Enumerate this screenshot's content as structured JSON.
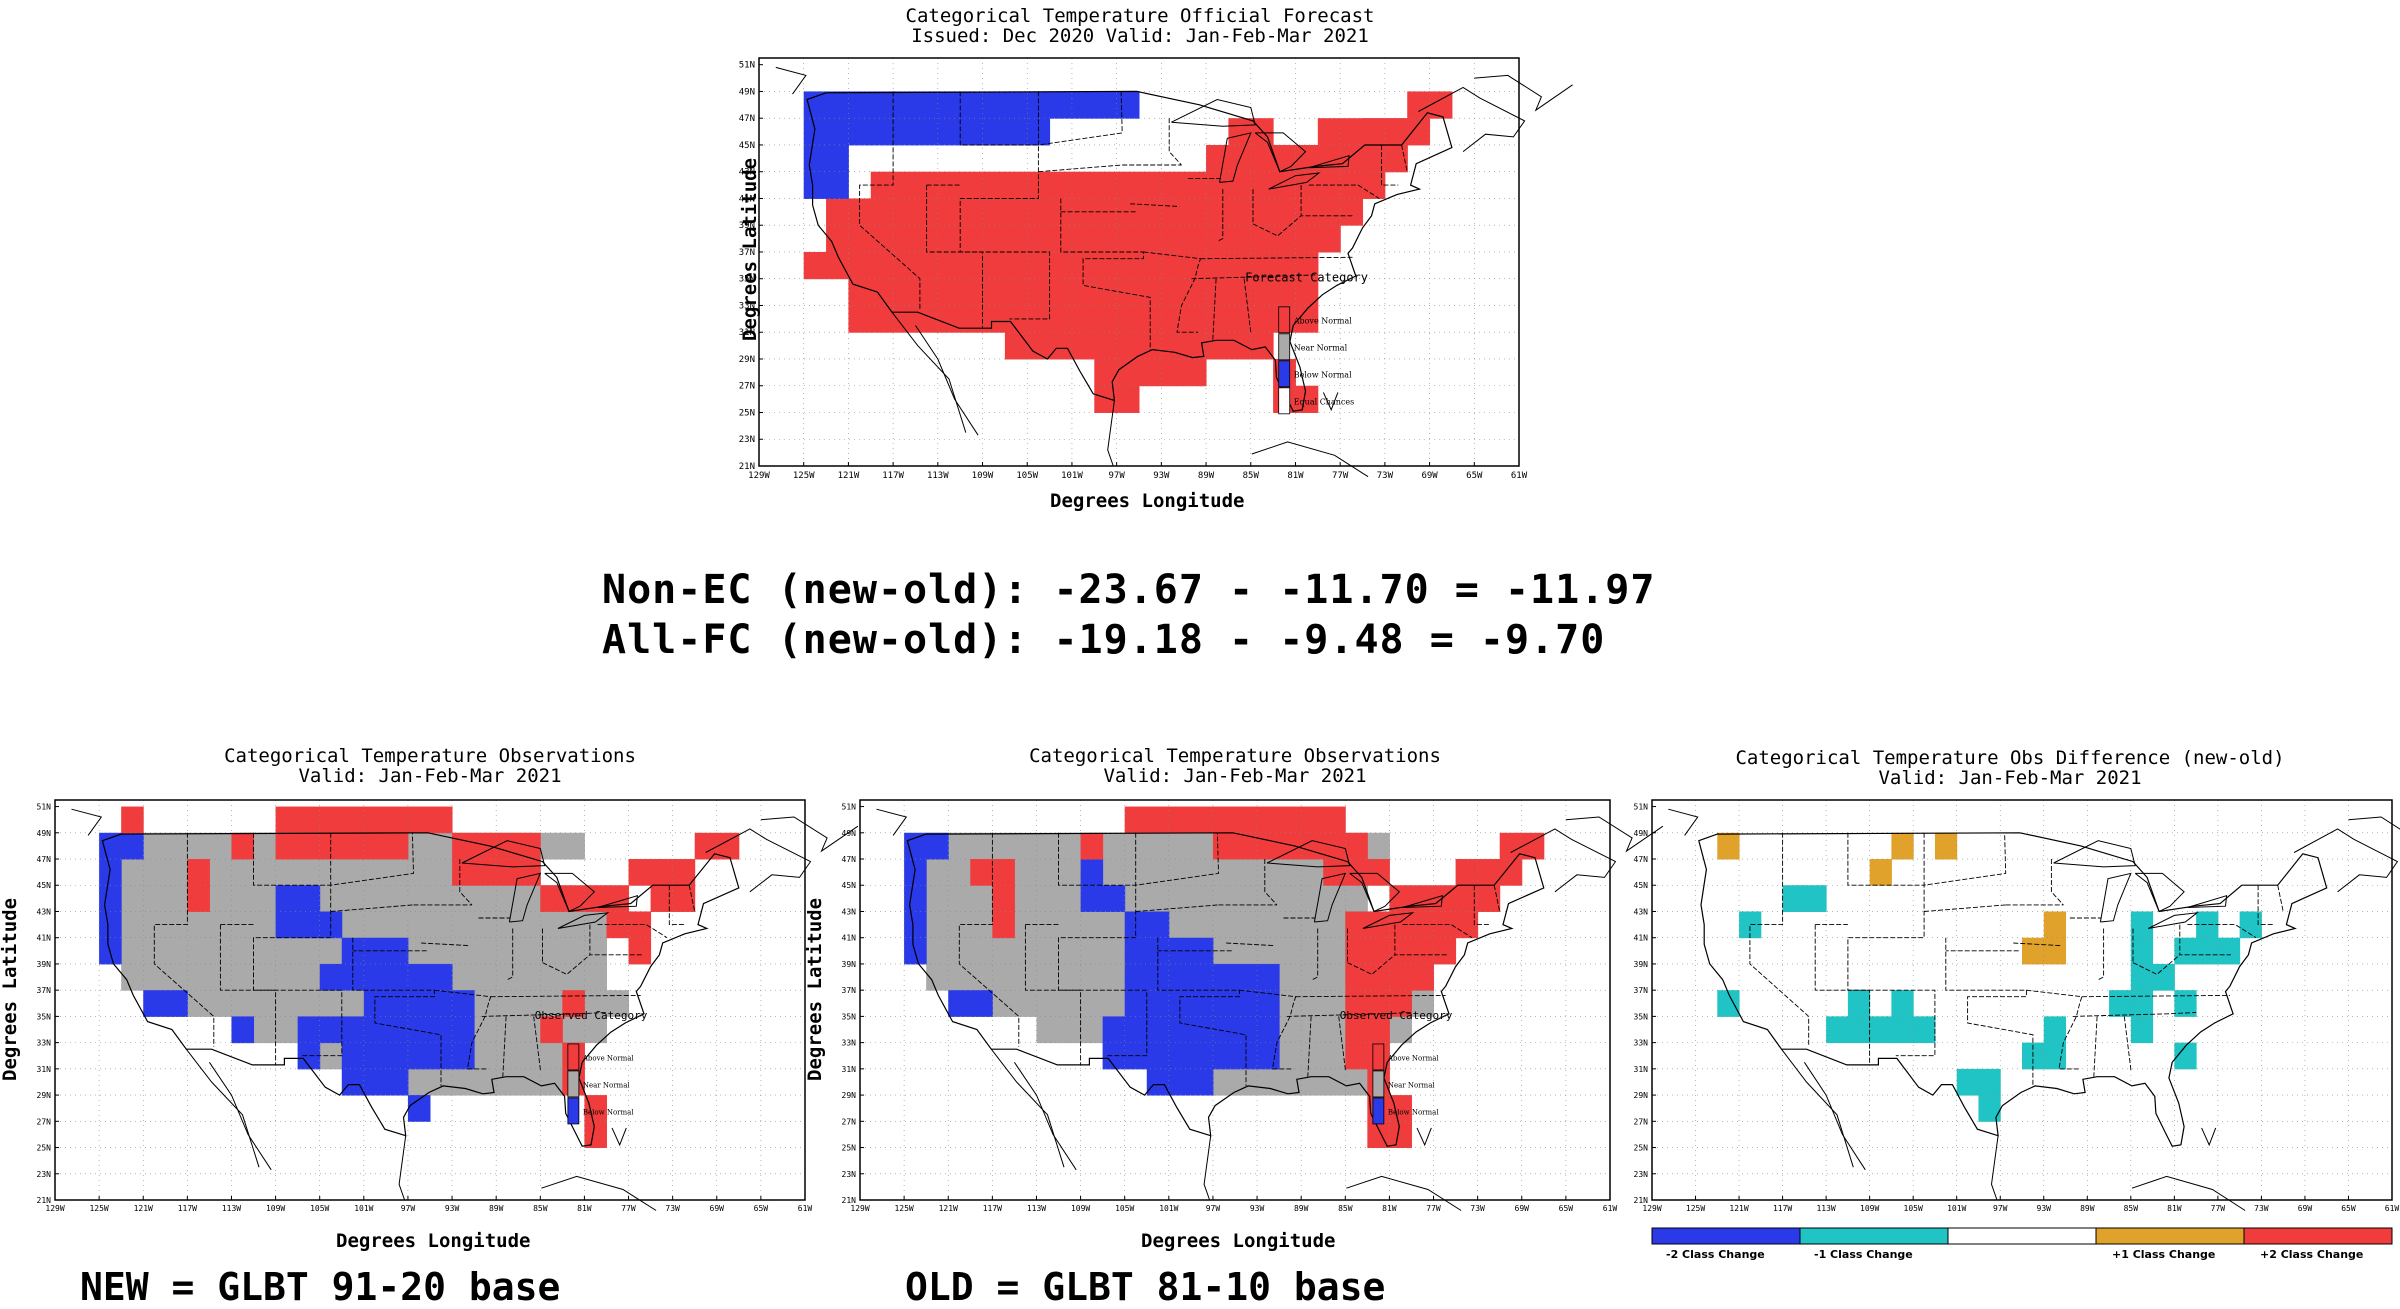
{
  "colors": {
    "above": "#f03c3c",
    "near": "#aaaaaa",
    "below": "#2a3ae8",
    "ec": "#ffffff",
    "minus2": "#2a3ae8",
    "minus1": "#20c4c4",
    "plus1": "#e0a22a",
    "plus2": "#f03c3c"
  },
  "forecast_panel": {
    "title_line1": "Categorical Temperature Official Forecast",
    "title_line2": "Issued: Dec 2020 Valid: Jan-Feb-Mar 2021",
    "xlabel": "Degrees Longitude",
    "ylabel": "Degrees Latitude",
    "legend_title": "Forecast Category",
    "legend": [
      "Above Normal",
      "Near Normal",
      "Below Normal",
      "Equal Chances"
    ]
  },
  "scores": {
    "line1": "Non-EC (new-old): -23.67 - -11.70 = -11.97",
    "line2": "All-FC (new-old): -19.18 - -9.48 = -9.70"
  },
  "new_panel": {
    "title_line1": "Categorical Temperature Observations",
    "title_line2": "Valid: Jan-Feb-Mar 2021",
    "xlabel": "Degrees Longitude",
    "ylabel": "Degrees Latitude",
    "legend_title": "Observed Category",
    "legend": [
      "Above Normal",
      "Near Normal",
      "Below Normal"
    ],
    "caption": "NEW = GLBT 91-20 base"
  },
  "old_panel": {
    "title_line1": "Categorical Temperature Observations",
    "title_line2": "Valid: Jan-Feb-Mar 2021",
    "xlabel": "Degrees Longitude",
    "ylabel": "Degrees Latitude",
    "legend_title": "Observed Category",
    "legend": [
      "Above Normal",
      "Near Normal",
      "Below Normal"
    ],
    "caption": "OLD = GLBT 81-10 base"
  },
  "diff_panel": {
    "title_line1": "Categorical Temperature Obs Difference (new-old)",
    "title_line2": "Valid: Jan-Feb-Mar 2021",
    "colorbar_labels": [
      "-2 Class Change",
      "-1 Class Change",
      "+1 Class Change",
      "+2 Class Change"
    ]
  },
  "axes": {
    "lat_ticks": [
      "51N",
      "49N",
      "47N",
      "45N",
      "43N",
      "41N",
      "39N",
      "37N",
      "35N",
      "33N",
      "31N",
      "29N",
      "27N",
      "25N",
      "23N",
      "21N"
    ],
    "lon_ticks": [
      "129W",
      "125W",
      "121W",
      "117W",
      "113W",
      "109W",
      "105W",
      "101W",
      "97W",
      "93W",
      "89W",
      "85W",
      "81W",
      "77W",
      "73W",
      "69W",
      "65W",
      "61W"
    ]
  }
}
